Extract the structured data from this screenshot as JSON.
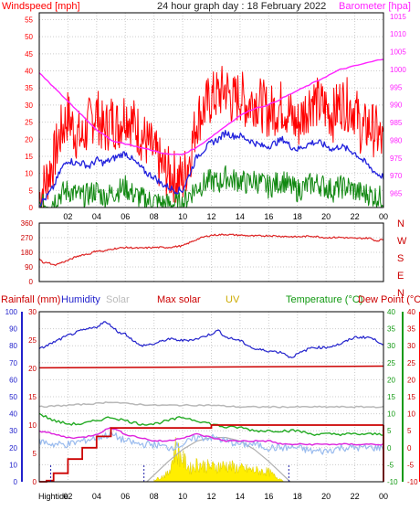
{
  "header": {
    "left_label": "Windspeed [mph]",
    "title": "24 hour graph day : 18 February 2022",
    "right_label": "Barometer [hpa]"
  },
  "bottom_header": {
    "rainfall": "Rainfall (mm)",
    "humidity": "Humidity",
    "solar": "Solar",
    "max_solar": "Max solar",
    "uv": "UV",
    "temperature": "Temperature (°C)",
    "dew_point": "Dew Point (°C)"
  },
  "colors": {
    "wind_gust": "#ff0000",
    "wind_avg": "#2222dd",
    "wind_low": "#118811",
    "barometer": "#ff22ff",
    "wind_dir": "#dd2222",
    "humidity": "#2222cc",
    "rain": "#cc0000",
    "solar": "#b8b8b8",
    "max_solar": "#b0b0b0",
    "uv": "#ffee00",
    "temperature": "#22aa22",
    "dew_point": "#dd22dd",
    "light_blue": "#99bbee",
    "axis_right_red": "#ff0000"
  },
  "x_tick_labels": [
    "02",
    "04",
    "06",
    "08",
    "10",
    "12",
    "14",
    "16",
    "18",
    "20",
    "22",
    "00"
  ],
  "bottom_x_first_label": "Hightide",
  "chart_data": [
    {
      "type": "line",
      "panel": "wind_barometer",
      "y_left": {
        "label": "Windspeed [mph]",
        "range": [
          0,
          57
        ],
        "ticks": [
          "0",
          "5",
          "10",
          "15",
          "20",
          "25",
          "30",
          "35",
          "40",
          "45",
          "50",
          "55"
        ]
      },
      "y_right": {
        "label": "Barometer [hpa]",
        "range": [
          961,
          1016
        ],
        "ticks": [
          "965",
          "970",
          "975",
          "980",
          "985",
          "990",
          "995",
          "1000",
          "1005",
          "1010",
          "1015"
        ]
      },
      "x_range_hours": [
        0,
        24
      ],
      "series": [
        {
          "name": "",
          "role": "gust",
          "axis": "left",
          "x": [
            0,
            0.5,
            1,
            1.5,
            2,
            2.5,
            3,
            3.5,
            4,
            4.5,
            5,
            5.5,
            6,
            6.5,
            7,
            7.5,
            8,
            8.5,
            9,
            9.5,
            10,
            10.5,
            11,
            11.5,
            12,
            12.5,
            13,
            13.5,
            14,
            14.5,
            15,
            15.5,
            16,
            16.5,
            17,
            17.5,
            18,
            18.5,
            19,
            19.5,
            20,
            20.5,
            21,
            21.5,
            22,
            22.5,
            23,
            23.5,
            24
          ],
          "y": [
            3,
            8,
            14,
            22,
            27,
            22,
            20,
            25,
            28,
            22,
            26,
            24,
            28,
            25,
            22,
            19,
            16,
            12,
            10,
            9,
            8,
            15,
            26,
            29,
            32,
            33,
            35,
            31,
            33,
            30,
            32,
            30,
            28,
            29,
            30,
            27,
            24,
            28,
            32,
            30,
            29,
            27,
            31,
            30,
            29,
            22,
            24,
            22,
            18
          ]
        },
        {
          "name": "",
          "role": "avg",
          "axis": "left",
          "x": [
            0,
            0.5,
            1,
            1.5,
            2,
            2.5,
            3,
            3.5,
            4,
            4.5,
            5,
            5.5,
            6,
            6.5,
            7,
            7.5,
            8,
            8.5,
            9,
            9.5,
            10,
            10.5,
            11,
            11.5,
            12,
            12.5,
            13,
            13.5,
            14,
            14.5,
            15,
            15.5,
            16,
            16.5,
            17,
            17.5,
            18,
            18.5,
            19,
            19.5,
            20,
            20.5,
            21,
            21.5,
            22,
            22.5,
            23,
            23.5,
            24
          ],
          "y": [
            1,
            3,
            6,
            11,
            14,
            13,
            13,
            12,
            14,
            13,
            14,
            15,
            16,
            14,
            12,
            10,
            9,
            7,
            6,
            5,
            5,
            10,
            15,
            17,
            19,
            20,
            22,
            21,
            21,
            20,
            19,
            18,
            18,
            19,
            20,
            18,
            17,
            18,
            19,
            19,
            18,
            17,
            18,
            17,
            16,
            14,
            12,
            10,
            9
          ]
        },
        {
          "name": "",
          "role": "low",
          "axis": "left",
          "x": [
            0,
            0.5,
            1,
            1.5,
            2,
            2.5,
            3,
            3.5,
            4,
            4.5,
            5,
            5.5,
            6,
            6.5,
            7,
            7.5,
            8,
            8.5,
            9,
            9.5,
            10,
            10.5,
            11,
            11.5,
            12,
            12.5,
            13,
            13.5,
            14,
            14.5,
            15,
            15.5,
            16,
            16.5,
            17,
            17.5,
            18,
            18.5,
            19,
            19.5,
            20,
            20.5,
            21,
            21.5,
            22,
            22.5,
            23,
            23.5,
            24
          ],
          "y": [
            0,
            1,
            2,
            4,
            5,
            4,
            3,
            4,
            5,
            3,
            4,
            5,
            6,
            4,
            3,
            2,
            2,
            1,
            1,
            1,
            1,
            4,
            6,
            7,
            8,
            7,
            9,
            8,
            8,
            7,
            8,
            7,
            6,
            7,
            8,
            6,
            5,
            6,
            7,
            7,
            6,
            5,
            6,
            6,
            5,
            4,
            4,
            3,
            3
          ]
        },
        {
          "name": "",
          "role": "barometer",
          "axis": "right",
          "x": [
            0,
            1,
            2,
            3,
            4,
            5,
            6,
            7,
            8,
            9,
            10,
            11,
            12,
            13,
            14,
            15,
            16,
            17,
            18,
            19,
            20,
            21,
            22,
            23,
            24
          ],
          "y": [
            999,
            995,
            991,
            987,
            983,
            980,
            979,
            978,
            977,
            976,
            976,
            978,
            981,
            984,
            987,
            989,
            990,
            992,
            994,
            996,
            998,
            1000,
            1001,
            1002,
            1003
          ]
        }
      ],
      "grid": true
    },
    {
      "type": "line",
      "panel": "wind_direction",
      "y_left": {
        "range": [
          0,
          360
        ],
        "ticks": [
          "0",
          "90",
          "180",
          "270",
          "360"
        ]
      },
      "y_right_labels": [
        "N",
        "W",
        "S",
        "E",
        "N"
      ],
      "x_range_hours": [
        0,
        24
      ],
      "series": [
        {
          "name": "",
          "role": "direction",
          "x": [
            0,
            0.3,
            0.6,
            1,
            1.5,
            2,
            2.5,
            3,
            3.5,
            4,
            4.5,
            5,
            5.5,
            6,
            7,
            8,
            9,
            10,
            10.5,
            11,
            11.5,
            12,
            13,
            14,
            15,
            16,
            17,
            18,
            19,
            20,
            21,
            22,
            23,
            23.5,
            24
          ],
          "y": [
            145,
            110,
            120,
            100,
            115,
            130,
            150,
            165,
            170,
            190,
            185,
            200,
            205,
            210,
            205,
            210,
            210,
            220,
            240,
            260,
            275,
            285,
            290,
            285,
            280,
            283,
            278,
            275,
            280,
            270,
            272,
            265,
            268,
            250,
            260
          ]
        }
      ],
      "grid": true
    },
    {
      "type": "line",
      "panel": "rain_humidity_solar_temp",
      "y_axes": {
        "rainfall_blue": {
          "range": [
            0,
            100
          ],
          "ticks": [
            "0",
            "10",
            "20",
            "30",
            "40",
            "50",
            "60",
            "70",
            "80",
            "90",
            "100"
          ]
        },
        "rainfall_red": {
          "range": [
            0,
            30
          ],
          "ticks": [
            "0",
            "5",
            "10",
            "15",
            "20",
            "25",
            "30"
          ]
        },
        "temperature_green": {
          "range": [
            -10,
            40
          ],
          "ticks": [
            "-10",
            "-5",
            "0",
            "5",
            "10",
            "15",
            "20",
            "25",
            "30",
            "35",
            "40"
          ]
        },
        "dew_point_red": {
          "range": [
            -10,
            40
          ],
          "ticks": [
            "-10",
            "-5",
            "0",
            "5",
            "10",
            "15",
            "20",
            "25",
            "30",
            "35",
            "40"
          ]
        }
      },
      "x_range_hours": [
        0,
        24
      ],
      "series": [
        {
          "name": "Humidity",
          "axis": "rainfall_blue",
          "x": [
            0,
            1,
            2,
            3,
            4,
            4.5,
            5,
            5.5,
            6,
            7,
            8,
            9,
            10,
            11,
            12,
            12.5,
            13,
            14,
            15,
            16,
            17,
            17.5,
            18,
            19,
            20,
            21,
            22,
            23,
            23.5,
            24
          ],
          "y": [
            78,
            82,
            86,
            89,
            91,
            94,
            92,
            88,
            87,
            80,
            81,
            84,
            83,
            84,
            87,
            89,
            85,
            83,
            78,
            77,
            76,
            73,
            75,
            79,
            79,
            81,
            85,
            85,
            83,
            81
          ]
        },
        {
          "name": "Rainfall (mm)",
          "axis": "rainfall_red",
          "x": [
            0,
            0.5,
            1,
            2,
            3,
            4,
            5,
            6,
            7,
            8,
            9,
            10,
            11,
            12,
            13,
            14,
            15,
            16,
            17,
            18,
            19,
            20,
            21,
            22,
            23,
            24
          ],
          "y": [
            0,
            0.2,
            1.5,
            4,
            6,
            8,
            9.5,
            9.5,
            9.5,
            9.5,
            9.5,
            9.5,
            9.5,
            10,
            10,
            10,
            10,
            10,
            10,
            10,
            10,
            10,
            10,
            10,
            10,
            10
          ]
        },
        {
          "name": "Max solar",
          "axis": "rainfall_blue",
          "x": [
            0,
            24
          ],
          "y": [
            67,
            68
          ]
        },
        {
          "name": "Solar",
          "axis": "rainfall_blue",
          "x": [
            0,
            2,
            4,
            5,
            6,
            8,
            10,
            12,
            14,
            16,
            18,
            20,
            22,
            24
          ],
          "y": [
            44,
            45,
            46,
            47,
            46,
            45,
            45,
            45,
            44,
            44,
            44,
            44,
            44,
            44
          ]
        },
        {
          "name": "",
          "role": "max_solar_curve",
          "axis": "rainfall_blue",
          "x": [
            7.5,
            8,
            9,
            10,
            11,
            12,
            13,
            14,
            15,
            16,
            17,
            17.5
          ],
          "y": [
            0,
            4,
            12,
            19,
            24,
            26,
            26,
            24,
            19,
            12,
            4,
            0
          ]
        },
        {
          "name": "UV",
          "axis": "rainfall_blue",
          "x": [
            8,
            9,
            9.5,
            10,
            10.5,
            11,
            12,
            13,
            14,
            15,
            16,
            16.5,
            17
          ],
          "y": [
            1,
            5,
            20,
            14,
            8,
            11,
            9,
            10,
            8,
            7,
            6,
            3,
            1
          ]
        },
        {
          "name": "Temperature (°C)",
          "axis": "temperature_green",
          "x": [
            0,
            1,
            2,
            3,
            4,
            5,
            6,
            7,
            8,
            9,
            10,
            11,
            12,
            13,
            14,
            15,
            16,
            17,
            18,
            19,
            20,
            21,
            22,
            23,
            24
          ],
          "y": [
            10,
            8,
            7,
            7,
            8,
            9,
            8,
            7,
            7,
            8,
            9,
            8,
            7,
            6,
            6,
            5,
            5,
            5,
            5,
            4,
            4,
            4,
            4,
            4,
            4
          ]
        },
        {
          "name": "Dew Point (°C)",
          "axis": "dew_point_red",
          "x": [
            0,
            1,
            2,
            3,
            4,
            5,
            6,
            7,
            8,
            9,
            10,
            11,
            12,
            13,
            14,
            15,
            16,
            17,
            18,
            19,
            20,
            21,
            22,
            23,
            24
          ],
          "y": [
            5,
            4,
            3,
            3,
            4,
            6,
            4,
            3,
            2,
            2,
            3,
            4,
            3,
            2,
            2,
            2,
            2,
            1,
            1,
            1,
            1,
            1,
            1,
            1,
            1
          ]
        },
        {
          "name": "",
          "role": "light_blue_trace",
          "axis": "dew_point_red",
          "x": [
            0,
            1,
            2,
            3,
            4,
            5,
            6,
            7,
            8,
            9,
            10,
            11,
            12,
            13,
            14,
            15,
            16,
            17,
            18,
            19,
            20,
            21,
            22,
            23,
            24
          ],
          "y": [
            2,
            1,
            1,
            2,
            3,
            4,
            2,
            1,
            1,
            0,
            1,
            3,
            3,
            2,
            1,
            1,
            0,
            0,
            0,
            -1,
            -1,
            0,
            0,
            0,
            0
          ]
        }
      ],
      "grid": true
    }
  ]
}
